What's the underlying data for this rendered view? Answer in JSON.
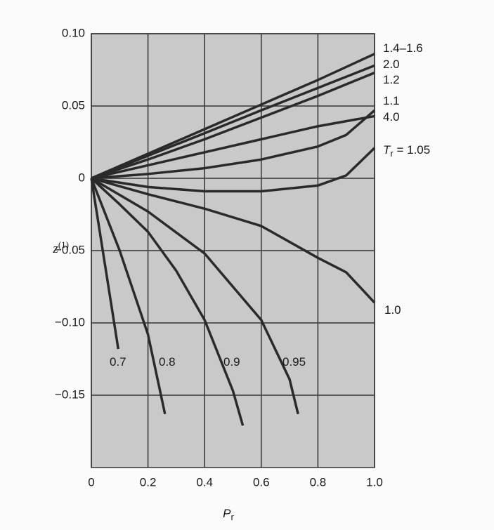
{
  "chart_data": {
    "type": "line",
    "xlabel": {
      "base": "P",
      "sub": "r"
    },
    "ylabel": {
      "base": "z",
      "sup": "(1)"
    },
    "series_symbol": {
      "base": "T",
      "sub": "r",
      "eq": " = "
    },
    "xlim": [
      0,
      1.0
    ],
    "ylim": [
      -0.2,
      0.1
    ],
    "xticks": [
      0,
      0.2,
      0.4,
      0.6,
      0.8,
      {
        "value": 1.0,
        "label": "1.0"
      }
    ],
    "yticks": [
      {
        "value": -0.15,
        "label": "−0.15"
      },
      {
        "value": -0.1,
        "label": "−0.10"
      },
      {
        "value": -0.05,
        "label": "−0.05"
      },
      0,
      0.05,
      {
        "value": 0.1,
        "label": "0.10"
      }
    ],
    "grid": true,
    "series": [
      {
        "name": "1.4–1.6",
        "color": "#2a2a2a",
        "x": [
          0,
          0.2,
          0.4,
          0.6,
          0.8,
          1.0
        ],
        "values": [
          0,
          0.017,
          0.034,
          0.051,
          0.068,
          0.086
        ]
      },
      {
        "name": "2.0",
        "color": "#2a2a2a",
        "x": [
          0,
          0.2,
          0.4,
          0.6,
          0.8,
          1.0
        ],
        "values": [
          0,
          0.0156,
          0.0312,
          0.047,
          0.0625,
          0.078
        ]
      },
      {
        "name": "1.2",
        "color": "#2a2a2a",
        "x": [
          0,
          0.2,
          0.4,
          0.6,
          0.8,
          1.0
        ],
        "values": [
          0,
          0.013,
          0.027,
          0.042,
          0.057,
          0.073
        ]
      },
      {
        "name": "1.1",
        "color": "#2a2a2a",
        "x": [
          0,
          0.2,
          0.4,
          0.6,
          0.8,
          0.9,
          1.0
        ],
        "values": [
          0,
          0.003,
          0.007,
          0.013,
          0.022,
          0.03,
          0.047
        ]
      },
      {
        "name": "4.0",
        "color": "#2a2a2a",
        "x": [
          0,
          0.2,
          0.4,
          0.6,
          0.8,
          1.0
        ],
        "values": [
          0,
          0.009,
          0.018,
          0.027,
          0.036,
          0.043
        ]
      },
      {
        "name": "1.05",
        "color": "#2a2a2a",
        "x": [
          0,
          0.2,
          0.4,
          0.6,
          0.8,
          0.9,
          1.0
        ],
        "values": [
          0,
          -0.006,
          -0.009,
          -0.009,
          -0.005,
          0.002,
          0.021
        ]
      },
      {
        "name": "1.0",
        "color": "#2a2a2a",
        "x": [
          0,
          0.2,
          0.4,
          0.6,
          0.8,
          0.9,
          1.0
        ],
        "values": [
          0,
          -0.011,
          -0.021,
          -0.033,
          -0.055,
          -0.065,
          -0.086
        ]
      },
      {
        "name": "0.95",
        "color": "#2a2a2a",
        "x": [
          0,
          0.2,
          0.4,
          0.6,
          0.7,
          0.73
        ],
        "values": [
          0,
          -0.023,
          -0.052,
          -0.098,
          -0.139,
          -0.163
        ]
      },
      {
        "name": "0.9",
        "color": "#2a2a2a",
        "x": [
          0,
          0.1,
          0.2,
          0.3,
          0.4,
          0.5,
          0.535
        ],
        "values": [
          0,
          -0.018,
          -0.037,
          -0.064,
          -0.098,
          -0.147,
          -0.171
        ]
      },
      {
        "name": "0.8",
        "color": "#2a2a2a",
        "x": [
          0,
          0.1,
          0.2,
          0.26
        ],
        "values": [
          0,
          -0.05,
          -0.108,
          -0.163
        ]
      },
      {
        "name": "0.7",
        "color": "#2a2a2a",
        "x": [
          0,
          0.05,
          0.095
        ],
        "values": [
          0,
          -0.062,
          -0.118
        ]
      }
    ]
  }
}
